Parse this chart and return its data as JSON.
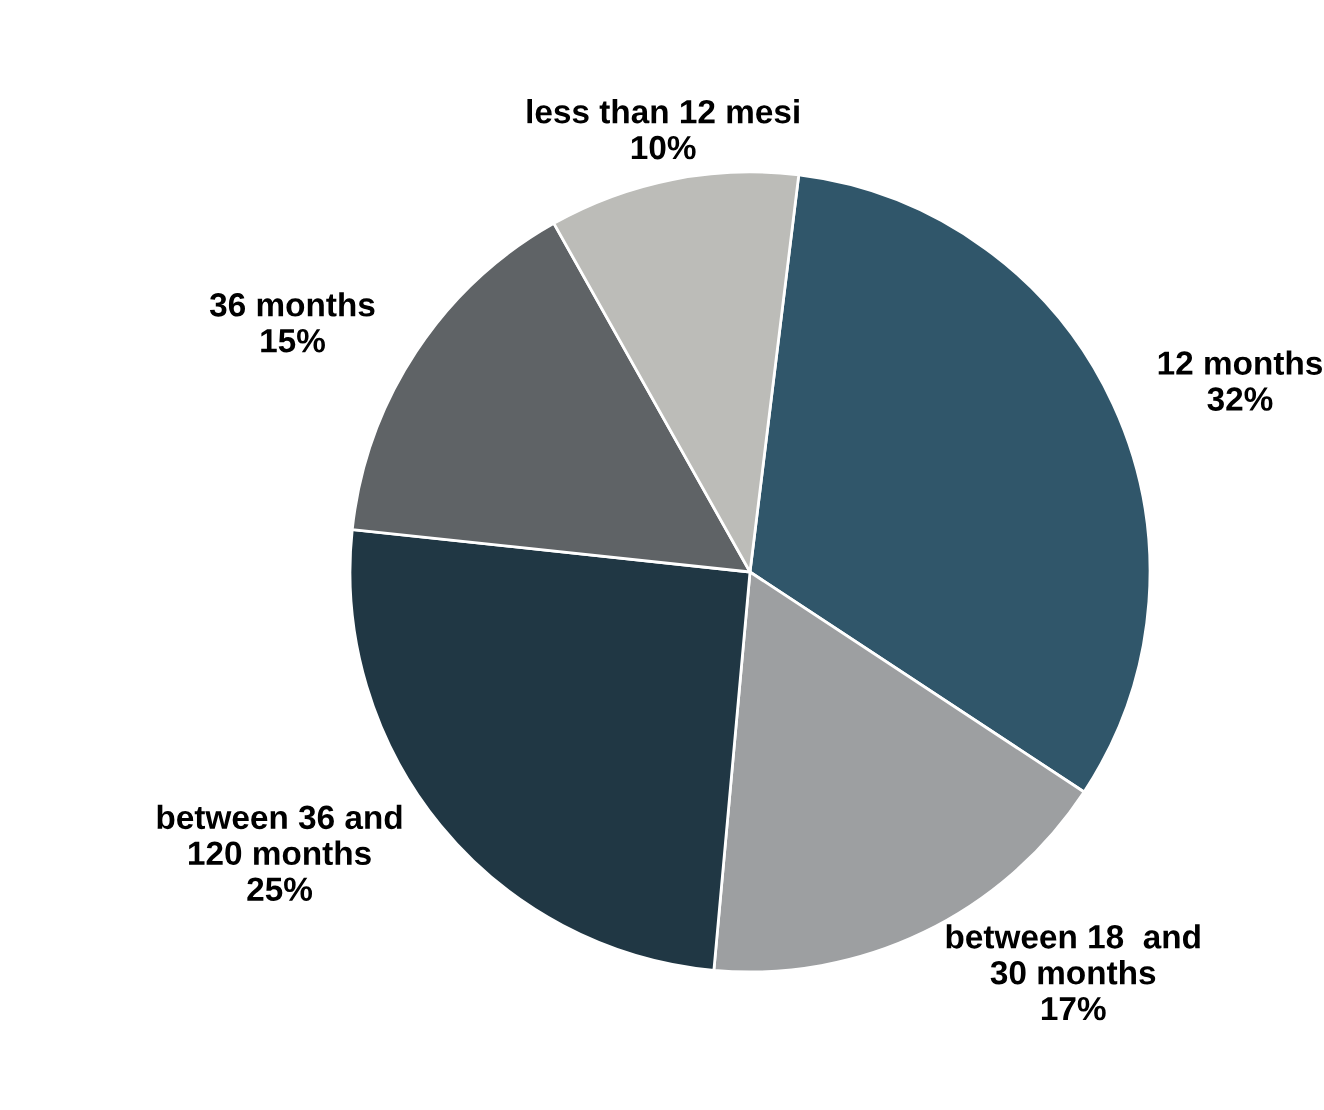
{
  "chart_data": {
    "type": "pie",
    "categories": [
      "12 months",
      "between 18  and\n30 months",
      "between 36 and\n120 months",
      "36 months",
      "less than 12 mesi"
    ],
    "values": [
      32,
      17,
      25,
      15,
      10
    ],
    "colors": [
      "#30566a",
      "#9d9fa1",
      "#203744",
      "#5f6366",
      "#bcbcb8"
    ],
    "value_labels": [
      "32%",
      "17%",
      "25%",
      "15%",
      "10%"
    ]
  }
}
